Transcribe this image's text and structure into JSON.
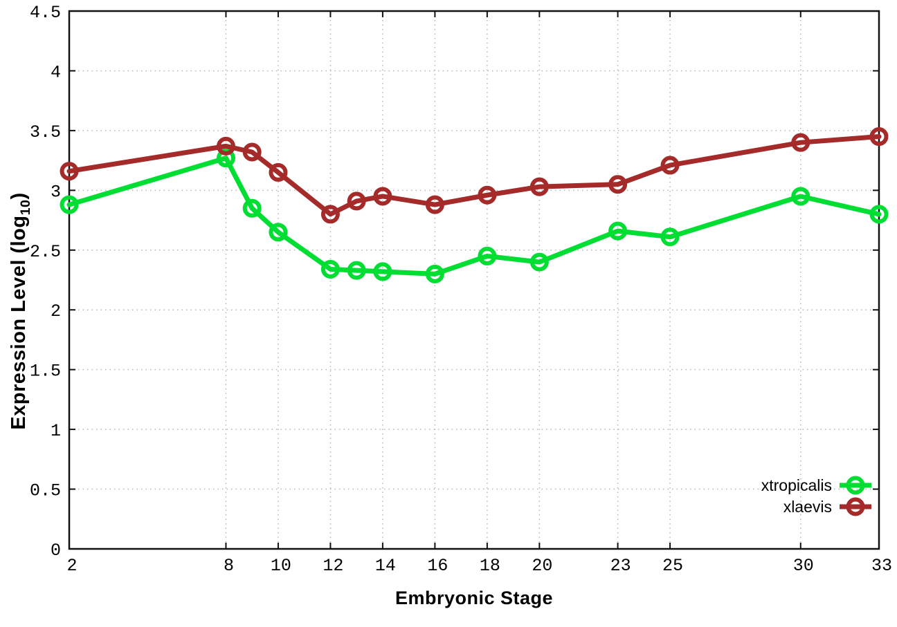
{
  "chart_data": {
    "type": "line",
    "title": "",
    "xlabel": "Embryonic Stage",
    "ylabel_main": "Expression Level (log",
    "ylabel_sub": "10",
    "ylabel_end": ")",
    "xlim": [
      2,
      33
    ],
    "ylim": [
      0,
      4.5
    ],
    "grid": true,
    "legend_position": "bottom-right",
    "x": [
      2,
      8,
      9,
      10,
      12,
      13,
      14,
      16,
      18,
      20,
      23,
      25,
      30,
      33
    ],
    "xtick_values": [
      2,
      8,
      10,
      12,
      14,
      16,
      18,
      20,
      23,
      25,
      30,
      33
    ],
    "xtick_labels": [
      "2",
      "8",
      "10",
      "12",
      "14",
      "16",
      "18",
      "20",
      "23",
      "25",
      "30",
      "33"
    ],
    "ytick_values": [
      0,
      0.5,
      1,
      1.5,
      2,
      2.5,
      3,
      3.5,
      4,
      4.5
    ],
    "ytick_labels": [
      "0",
      "0.5",
      "1",
      "1.5",
      "2",
      "2.5",
      "3",
      "3.5",
      "4",
      "4.5"
    ],
    "series": [
      {
        "name": "xtropicalis",
        "color": "#00dd33",
        "values": [
          2.88,
          3.27,
          2.85,
          2.65,
          2.34,
          2.33,
          2.32,
          2.3,
          2.45,
          2.4,
          2.66,
          2.61,
          2.95,
          2.8
        ]
      },
      {
        "name": "xlaevis",
        "color": "#a52a2a",
        "values": [
          3.16,
          3.37,
          3.32,
          3.15,
          2.8,
          2.91,
          2.95,
          2.88,
          2.96,
          3.03,
          3.05,
          3.21,
          3.4,
          3.45
        ]
      }
    ],
    "style": {
      "border_color": "#111111",
      "grid_color": "#b5b5b5",
      "background": "#ffffff",
      "marker": "open-circle"
    }
  }
}
